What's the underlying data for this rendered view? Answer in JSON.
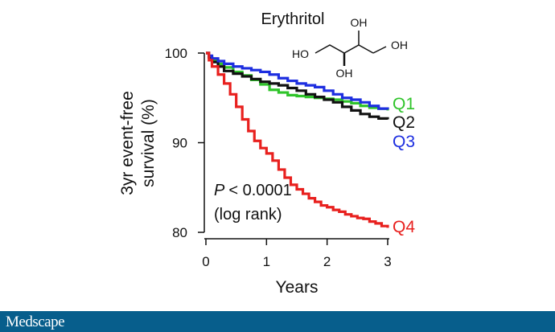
{
  "chart_data": {
    "type": "line",
    "title": "Erythritol",
    "xlabel": "Years",
    "ylabel": "3yr event-free survival (%)",
    "xlim": [
      0,
      3
    ],
    "ylim": [
      80,
      100
    ],
    "xticks": [
      "0",
      "1",
      "2",
      "3"
    ],
    "yticks": [
      "80",
      "90",
      "100"
    ],
    "annotation": {
      "p_symbol": "P",
      "p_value": "< 0.0001",
      "method": "(log rank)"
    },
    "molecule_labels": [
      "HO",
      "OH",
      "OH",
      "OH"
    ],
    "series": [
      {
        "name": "Q1",
        "color": "#2fc42a",
        "x": [
          0,
          0.05,
          0.1,
          0.2,
          0.3,
          0.45,
          0.6,
          0.75,
          0.9,
          1.05,
          1.2,
          1.35,
          1.5,
          1.65,
          1.8,
          1.95,
          2.1,
          2.25,
          2.4,
          2.55,
          2.7,
          2.85,
          3.0
        ],
        "y": [
          100,
          99.6,
          99.2,
          98.8,
          98.4,
          97.9,
          97.5,
          97.0,
          96.5,
          95.9,
          95.6,
          95.3,
          95.2,
          95.1,
          95.0,
          94.9,
          94.8,
          94.6,
          94.4,
          94.1,
          93.9,
          93.8,
          93.6
        ]
      },
      {
        "name": "Q2",
        "color": "#111111",
        "x": [
          0,
          0.05,
          0.1,
          0.2,
          0.3,
          0.45,
          0.6,
          0.75,
          0.9,
          1.05,
          1.2,
          1.35,
          1.5,
          1.65,
          1.8,
          1.95,
          2.1,
          2.25,
          2.4,
          2.55,
          2.7,
          2.85,
          3.0
        ],
        "y": [
          100,
          99.5,
          99.0,
          98.5,
          98.0,
          97.7,
          97.4,
          97.1,
          96.8,
          96.6,
          96.4,
          96.1,
          95.8,
          95.4,
          95.1,
          94.8,
          94.5,
          94.0,
          93.6,
          93.2,
          92.9,
          92.7,
          92.6
        ]
      },
      {
        "name": "Q3",
        "color": "#1d2ee0",
        "x": [
          0,
          0.05,
          0.1,
          0.2,
          0.3,
          0.45,
          0.6,
          0.75,
          0.9,
          1.05,
          1.2,
          1.35,
          1.5,
          1.65,
          1.8,
          1.95,
          2.1,
          2.25,
          2.4,
          2.55,
          2.7,
          2.85,
          3.0
        ],
        "y": [
          100,
          99.7,
          99.4,
          99.1,
          98.8,
          98.5,
          98.3,
          98.1,
          97.9,
          97.6,
          97.2,
          96.9,
          96.6,
          96.4,
          96.2,
          95.8,
          95.4,
          95.0,
          94.8,
          94.5,
          94.1,
          93.8,
          93.7
        ]
      },
      {
        "name": "Q4",
        "color": "#e8201e",
        "x": [
          0,
          0.05,
          0.1,
          0.2,
          0.3,
          0.4,
          0.5,
          0.6,
          0.7,
          0.8,
          0.9,
          1.0,
          1.1,
          1.2,
          1.3,
          1.4,
          1.5,
          1.6,
          1.7,
          1.8,
          1.9,
          2.0,
          2.1,
          2.2,
          2.3,
          2.4,
          2.5,
          2.6,
          2.7,
          2.8,
          2.9,
          3.0
        ],
        "y": [
          100,
          99.2,
          98.5,
          97.6,
          96.6,
          95.4,
          94.0,
          92.6,
          91.3,
          90.2,
          89.4,
          88.8,
          88.0,
          87.0,
          86.1,
          85.3,
          84.8,
          84.3,
          83.8,
          83.4,
          83.0,
          82.8,
          82.5,
          82.3,
          82.0,
          81.8,
          81.6,
          81.5,
          81.2,
          81.0,
          80.7,
          80.5
        ]
      }
    ]
  },
  "footer": {
    "brand": "Medscape"
  }
}
